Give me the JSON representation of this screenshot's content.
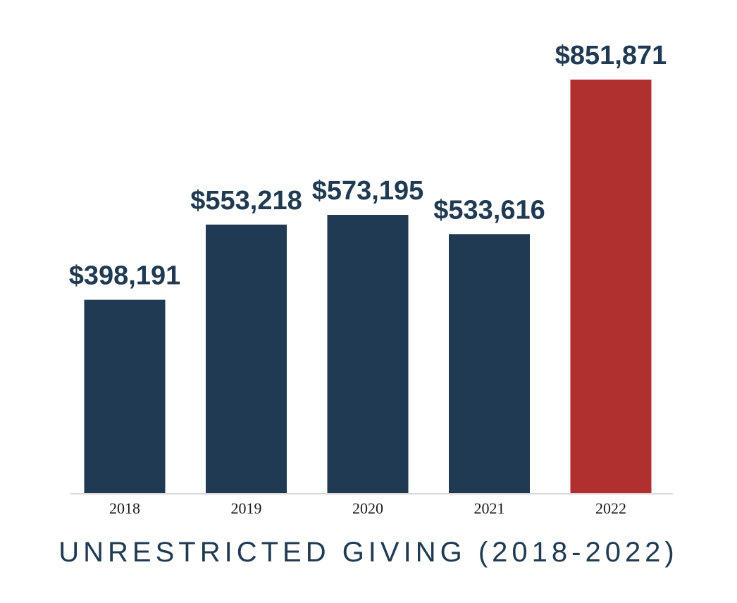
{
  "chart_data": {
    "type": "bar",
    "title": "UNRESTRICTED GIVING (2018-2022)",
    "categories": [
      "2018",
      "2019",
      "2020",
      "2021",
      "2022"
    ],
    "values": [
      398191,
      553218,
      573195,
      533616,
      851871
    ],
    "value_labels": [
      "$398,191",
      "$553,218",
      "$573,195",
      "$533,616",
      "$851,871"
    ],
    "ylim": [
      0,
      900000
    ],
    "grid": false,
    "legend": "none",
    "colors": {
      "default_bar": "#1f3a52",
      "highlight_bar": "#b03030",
      "axis_line": "#d9d9d9"
    },
    "highlight_index": 4
  }
}
